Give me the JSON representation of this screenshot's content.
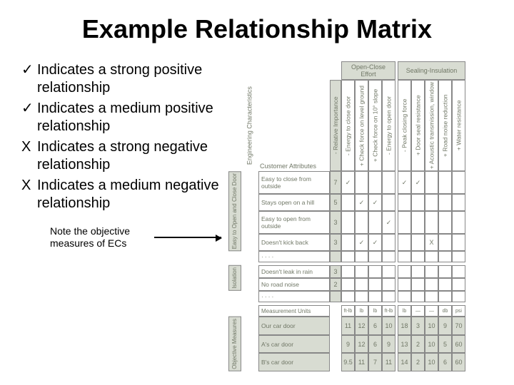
{
  "title": "Example Relationship Matrix",
  "legend": [
    {
      "mark": "✓",
      "text": "Indicates a strong positive relationship"
    },
    {
      "mark": "✓",
      "text": "Indicates a medium positive relationship"
    },
    {
      "mark": "X",
      "text": "Indicates a strong negative relationship"
    },
    {
      "mark": "X",
      "text": "Indicates a medium negative relationship"
    }
  ],
  "note": "Note the objective measures of ECs",
  "matrix": {
    "top_groups": [
      "Open-Close Effort",
      "Sealing-Insulation"
    ],
    "side_label_top": "Engineering Characteristics",
    "side_label_cust": "Customer Attributes",
    "rel_importance": "- Relative Importance",
    "ec_columns_left": [
      {
        "sign": "-",
        "label": "Energy to close door"
      },
      {
        "sign": "+",
        "label": "Check force on level ground"
      },
      {
        "sign": "+",
        "label": "Check force on 10° slope"
      },
      {
        "sign": "-",
        "label": "Energy to open door"
      }
    ],
    "ec_columns_right": [
      {
        "sign": "-",
        "label": "Peak closing force"
      },
      {
        "sign": "+",
        "label": "Door seal resistance"
      },
      {
        "sign": "+",
        "label": "Acoustic transmission, window"
      },
      {
        "sign": "+",
        "label": "Road noise reduction"
      },
      {
        "sign": "+",
        "label": "Water resistance"
      }
    ],
    "row_groups": [
      {
        "label": "Easy to Open and Close Door",
        "rows": [
          {
            "name": "Easy to close from outside",
            "imp": "7",
            "cells": [
              "✓",
              "",
              "",
              "",
              "✓",
              "✓",
              "",
              "",
              ""
            ]
          },
          {
            "name": "Stays open on a hill",
            "imp": "5",
            "cells": [
              "",
              "✓",
              "✓",
              "",
              "",
              "",
              "",
              "",
              ""
            ]
          },
          {
            "name": "Easy to open from outside",
            "imp": "3",
            "cells": [
              "",
              "",
              "",
              "✓",
              "",
              "",
              "",
              "",
              ""
            ]
          },
          {
            "name": "Doesn't kick back",
            "imp": "3",
            "cells": [
              "",
              "✓",
              "✓",
              "",
              "",
              "",
              "X",
              "",
              ""
            ]
          }
        ]
      },
      {
        "label": "Isolation",
        "rows": [
          {
            "name": "Doesn't leak in rain",
            "imp": "3",
            "cells": [
              "",
              "",
              "",
              "",
              "",
              "",
              "",
              "",
              ""
            ]
          },
          {
            "name": "No road noise",
            "imp": "2",
            "cells": [
              "",
              "",
              "",
              "",
              "",
              "",
              "",
              "",
              ""
            ]
          }
        ]
      }
    ],
    "dots": "····",
    "measures": {
      "label": "Objective Measures",
      "unit_row": {
        "name": "Measurement Units",
        "cells": [
          "ft-lb",
          "lb",
          "lb",
          "ft-lb",
          "lb",
          "—",
          "—",
          "db",
          "psi"
        ]
      },
      "rows": [
        {
          "name": "Our car door",
          "cells": [
            "11",
            "12",
            "6",
            "10",
            "18",
            "3",
            "10",
            "9",
            "70"
          ]
        },
        {
          "name": "A's car door",
          "cells": [
            "9",
            "12",
            "6",
            "9",
            "13",
            "2",
            "10",
            "5",
            "60"
          ]
        },
        {
          "name": "B's car door",
          "cells": [
            "9.5",
            "11",
            "7",
            "11",
            "14",
            "2",
            "10",
            "6",
            "60"
          ]
        }
      ]
    }
  },
  "colors": {
    "gray_fill": "#d8dcd2",
    "text_muted": "#707766",
    "border": "#888888"
  }
}
